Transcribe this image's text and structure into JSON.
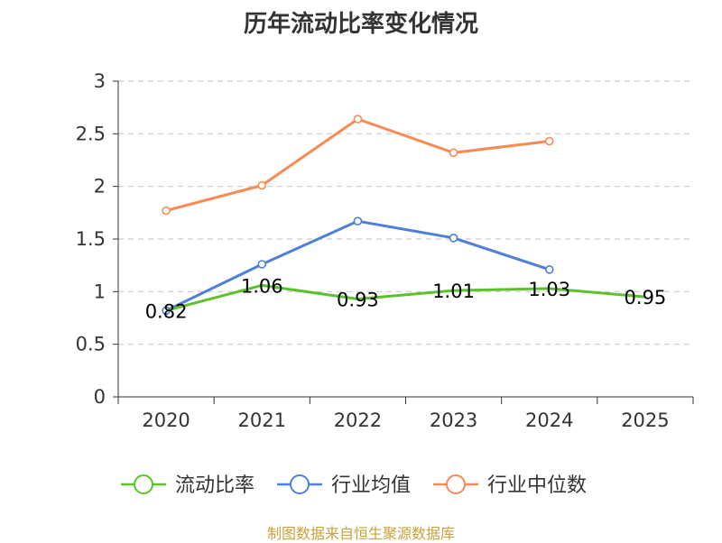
{
  "chart_data": {
    "type": "line",
    "title": "历年流动比率变化情况",
    "categories": [
      "2020",
      "2021",
      "2022",
      "2023",
      "2024",
      "2025"
    ],
    "ylim": [
      0,
      3
    ],
    "yticks": [
      "0",
      "0.5",
      "1",
      "1.5",
      "2",
      "2.5",
      "3"
    ],
    "ytick_values": [
      0,
      0.5,
      1,
      1.5,
      2,
      2.5,
      3
    ],
    "grid": true,
    "legend_position": "bottom",
    "series": [
      {
        "name": "流动比率",
        "color": "#5bc22a",
        "values": [
          0.82,
          1.06,
          0.93,
          1.01,
          1.03,
          0.95
        ],
        "labels": [
          "0.82",
          "1.06",
          "0.93",
          "1.01",
          "1.03",
          "0.95"
        ],
        "show_markers": false,
        "show_labels": true
      },
      {
        "name": "行业均值",
        "color": "#4e7fda",
        "values": [
          0.82,
          1.26,
          1.67,
          1.51,
          1.21,
          null
        ],
        "show_markers": true,
        "show_labels": false
      },
      {
        "name": "行业中位数",
        "color": "#f78b53",
        "values": [
          1.77,
          2.01,
          2.64,
          2.32,
          2.43,
          null
        ],
        "show_markers": true,
        "show_labels": false
      }
    ]
  },
  "source_note": "制图数据来自恒生聚源数据库"
}
